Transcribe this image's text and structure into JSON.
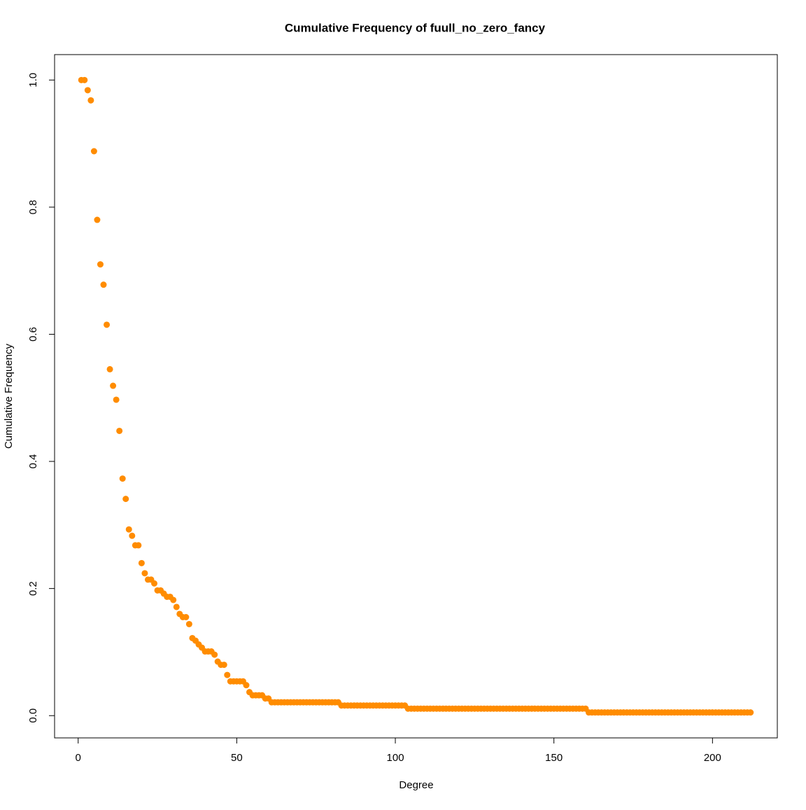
{
  "chart_data": {
    "type": "scatter",
    "title": "Cumulative Frequency of fuull_no_zero_fancy",
    "x_label": "Degree",
    "y_label": "Cumulative Frequency",
    "color": "#ff8c00",
    "x": [
      1,
      2,
      3,
      4,
      5,
      6,
      7,
      8,
      9,
      10,
      11,
      12,
      13,
      14,
      15,
      16,
      17,
      18,
      19,
      20,
      21,
      22,
      23,
      24,
      25,
      26,
      27,
      28,
      29,
      30,
      31,
      32,
      33,
      34,
      35,
      36,
      37,
      38,
      39,
      40,
      41,
      42,
      43,
      44,
      45,
      46,
      47,
      48,
      49,
      50,
      51,
      52,
      53,
      54,
      55,
      56,
      57,
      58,
      59,
      60,
      61,
      62,
      63,
      64,
      65,
      66,
      67,
      68,
      69,
      70,
      71,
      72,
      73,
      74,
      75,
      76,
      77,
      78,
      79,
      80,
      81,
      82,
      83,
      84,
      85,
      86,
      87,
      88,
      89,
      90,
      91,
      92,
      93,
      94,
      95,
      96,
      97,
      98,
      99,
      100,
      101,
      102,
      103,
      104,
      105,
      106,
      107,
      108,
      109,
      110,
      111,
      112,
      113,
      114,
      115,
      116,
      117,
      118,
      119,
      120,
      121,
      122,
      123,
      124,
      125,
      126,
      127,
      128,
      129,
      130,
      131,
      132,
      133,
      134,
      135,
      136,
      137,
      138,
      139,
      140,
      141,
      142,
      143,
      144,
      145,
      146,
      147,
      148,
      149,
      150,
      151,
      152,
      153,
      154,
      155,
      156,
      157,
      158,
      159,
      160,
      161,
      162,
      163,
      164,
      165,
      166,
      167,
      168,
      169,
      170,
      171,
      172,
      173,
      174,
      175,
      176,
      177,
      178,
      179,
      180,
      181,
      182,
      183,
      184,
      185,
      186,
      187,
      188,
      189,
      190,
      191,
      192,
      193,
      194,
      195,
      196,
      197,
      198,
      199,
      200,
      201,
      202,
      203,
      204,
      205,
      206,
      207,
      208,
      209,
      210,
      211,
      212
    ],
    "values": [
      1.0,
      1.0,
      0.984,
      0.968,
      0.888,
      0.78,
      0.71,
      0.678,
      0.615,
      0.545,
      0.519,
      0.497,
      0.448,
      0.373,
      0.341,
      0.293,
      0.283,
      0.268,
      0.268,
      0.24,
      0.224,
      0.214,
      0.214,
      0.208,
      0.197,
      0.197,
      0.192,
      0.187,
      0.187,
      0.182,
      0.171,
      0.16,
      0.155,
      0.155,
      0.144,
      0.122,
      0.118,
      0.112,
      0.107,
      0.101,
      0.101,
      0.101,
      0.096,
      0.085,
      0.08,
      0.08,
      0.064,
      0.054,
      0.054,
      0.054,
      0.054,
      0.054,
      0.048,
      0.037,
      0.032,
      0.032,
      0.032,
      0.032,
      0.027,
      0.027,
      0.021,
      0.021,
      0.021,
      0.021,
      0.021,
      0.021,
      0.021,
      0.021,
      0.021,
      0.021,
      0.021,
      0.021,
      0.021,
      0.021,
      0.021,
      0.021,
      0.021,
      0.021,
      0.021,
      0.021,
      0.021,
      0.021,
      0.016,
      0.016,
      0.016,
      0.016,
      0.016,
      0.016,
      0.016,
      0.016,
      0.016,
      0.016,
      0.016,
      0.016,
      0.016,
      0.016,
      0.016,
      0.016,
      0.016,
      0.016,
      0.016,
      0.016,
      0.016,
      0.011,
      0.011,
      0.011,
      0.011,
      0.011,
      0.011,
      0.011,
      0.011,
      0.011,
      0.011,
      0.011,
      0.011,
      0.011,
      0.011,
      0.011,
      0.011,
      0.011,
      0.011,
      0.011,
      0.011,
      0.011,
      0.011,
      0.011,
      0.011,
      0.011,
      0.011,
      0.011,
      0.011,
      0.011,
      0.011,
      0.011,
      0.011,
      0.011,
      0.011,
      0.011,
      0.011,
      0.011,
      0.011,
      0.011,
      0.011,
      0.011,
      0.011,
      0.011,
      0.011,
      0.011,
      0.011,
      0.011,
      0.011,
      0.011,
      0.011,
      0.011,
      0.011,
      0.011,
      0.011,
      0.011,
      0.011,
      0.011,
      0.005,
      0.005,
      0.005,
      0.005,
      0.005,
      0.005,
      0.005,
      0.005,
      0.005,
      0.005,
      0.005,
      0.005,
      0.005,
      0.005,
      0.005,
      0.005,
      0.005,
      0.005,
      0.005,
      0.005,
      0.005,
      0.005,
      0.005,
      0.005,
      0.005,
      0.005,
      0.005,
      0.005,
      0.005,
      0.005,
      0.005,
      0.005,
      0.005,
      0.005,
      0.005,
      0.005,
      0.005,
      0.005,
      0.005,
      0.005,
      0.005,
      0.005,
      0.005,
      0.005,
      0.005,
      0.005,
      0.005,
      0.005,
      0.005,
      0.005,
      0.005,
      0.005
    ],
    "xlim": [
      -7.44,
      220.44
    ],
    "ylim": [
      -0.035,
      1.04
    ],
    "xticks": [
      0,
      50,
      100,
      150,
      200
    ],
    "yticks": [
      {
        "value": 0,
        "label": "0.0"
      },
      0.2,
      0.4,
      0.6,
      0.8,
      {
        "value": 1,
        "label": "1.0"
      }
    ],
    "grid": false
  }
}
